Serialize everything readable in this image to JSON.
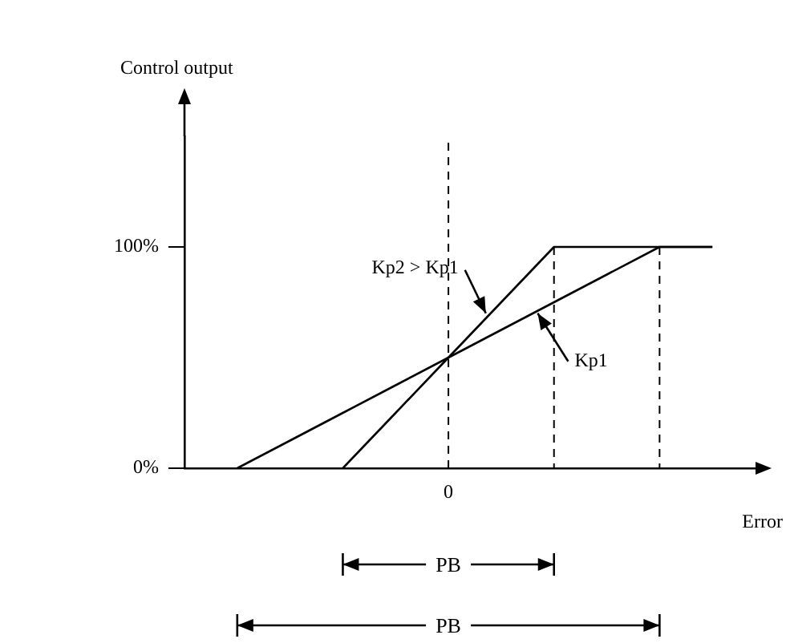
{
  "chart_data": {
    "type": "line",
    "ylabel": "Control output",
    "xlabel": "Error",
    "categories": [
      null,
      null,
      null,
      null,
      null,
      "0",
      null,
      null,
      null,
      null,
      null,
      null
    ],
    "ylim": [
      0,
      150
    ],
    "yticks": [
      {
        "value": 0,
        "label": "0%"
      },
      {
        "value": 100,
        "label": "100%"
      }
    ],
    "series": [
      {
        "name": "Kp1",
        "color": "#000000",
        "values": [
          null,
          0,
          12.5,
          25,
          37.5,
          50,
          62.5,
          75,
          87.5,
          100,
          100,
          null
        ]
      },
      {
        "name": "Kp2 > Kp1",
        "color": "#000000",
        "values": [
          null,
          null,
          null,
          0,
          25,
          50,
          75,
          100,
          100,
          100,
          100,
          null
        ]
      }
    ],
    "annotations": [
      "PB",
      "PB"
    ],
    "ref_lines": [
      {
        "axis": "x",
        "value": "0",
        "line_style": "dashed"
      }
    ],
    "grid": false,
    "legend": false,
    "marker": "none",
    "line_style": "solid"
  }
}
